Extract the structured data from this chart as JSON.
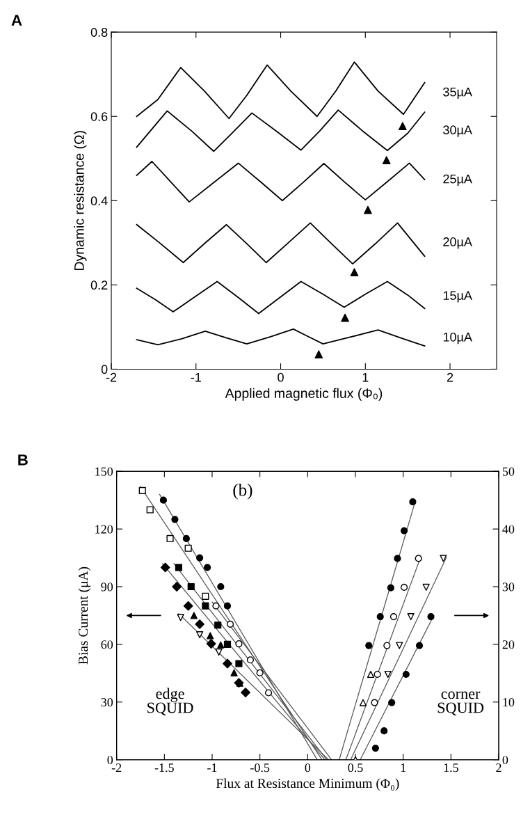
{
  "chart_data": [
    {
      "type": "line",
      "title": "A",
      "xlabel": "Applied magnetic flux (Φ₀)",
      "ylabel": "Dynamic resistance (Ω)",
      "xlim": [
        -2,
        2.55
      ],
      "ylim": [
        0,
        0.8
      ],
      "xticks": [
        -2,
        -1,
        0,
        1,
        2
      ],
      "yticks": [
        0,
        0.2,
        0.4,
        0.6,
        0.8
      ],
      "series": [
        {
          "name": "35µA",
          "color": "#000000",
          "x": [
            -1.7,
            -1.45,
            -1.18,
            -0.9,
            -0.61,
            -0.4,
            -0.16,
            0.12,
            0.43,
            0.65,
            0.87,
            1.15,
            1.45,
            1.7
          ],
          "values": [
            0.6,
            0.64,
            0.716,
            0.66,
            0.595,
            0.65,
            0.722,
            0.66,
            0.6,
            0.66,
            0.729,
            0.66,
            0.605,
            0.68
          ]
        },
        {
          "name": "30µA",
          "color": "#000000",
          "x": [
            -1.7,
            -1.34,
            -1.05,
            -0.79,
            -0.55,
            -0.34,
            -0.05,
            0.24,
            0.46,
            0.68,
            0.97,
            1.26,
            1.5,
            1.7
          ],
          "values": [
            0.527,
            0.613,
            0.565,
            0.517,
            0.565,
            0.608,
            0.565,
            0.52,
            0.565,
            0.615,
            0.565,
            0.519,
            0.56,
            0.61
          ]
        },
        {
          "name": "25µA",
          "color": "#000000",
          "x": [
            -1.7,
            -1.52,
            -1.3,
            -1.08,
            -0.79,
            -0.5,
            -0.24,
            0.02,
            0.27,
            0.51,
            0.75,
            1.0,
            1.26,
            1.52,
            1.7
          ],
          "values": [
            0.46,
            0.493,
            0.445,
            0.397,
            0.443,
            0.489,
            0.445,
            0.4,
            0.444,
            0.488,
            0.445,
            0.402,
            0.445,
            0.489,
            0.45
          ]
        },
        {
          "name": "20µA",
          "color": "#000000",
          "x": [
            -1.7,
            -1.43,
            -1.15,
            -0.9,
            -0.64,
            -0.4,
            -0.17,
            0.09,
            0.35,
            0.6,
            0.85,
            1.12,
            1.38,
            1.7
          ],
          "values": [
            0.343,
            0.3,
            0.253,
            0.298,
            0.343,
            0.298,
            0.253,
            0.3,
            0.347,
            0.298,
            0.25,
            0.298,
            0.347,
            0.268
          ]
        },
        {
          "name": "15µA",
          "color": "#000000",
          "x": [
            -1.7,
            -1.48,
            -1.27,
            -1.01,
            -0.75,
            -0.5,
            -0.26,
            -0.01,
            0.24,
            0.5,
            0.75,
            1.0,
            1.26,
            1.5,
            1.7
          ],
          "values": [
            0.192,
            0.165,
            0.136,
            0.172,
            0.208,
            0.17,
            0.132,
            0.17,
            0.208,
            0.178,
            0.147,
            0.178,
            0.208,
            0.176,
            0.144
          ]
        },
        {
          "name": "10µA",
          "color": "#000000",
          "x": [
            -1.7,
            -1.45,
            -1.17,
            -0.89,
            -0.65,
            -0.4,
            -0.12,
            0.15,
            0.32,
            0.5,
            0.82,
            1.15,
            1.45,
            1.7
          ],
          "values": [
            0.07,
            0.058,
            0.072,
            0.09,
            0.075,
            0.06,
            0.077,
            0.095,
            0.078,
            0.06,
            0.076,
            0.093,
            0.072,
            0.055
          ]
        },
        {
          "type": "scatter",
          "marker": "triangle",
          "color": "#000000",
          "x": [
            1.44,
            1.25,
            1.03,
            0.87,
            0.76,
            0.45
          ],
          "values": [
            0.577,
            0.496,
            0.378,
            0.23,
            0.122,
            0.035
          ]
        }
      ]
    },
    {
      "type": "scatter",
      "title": "B",
      "xlabel": "Flux at Resistance Minimum (Φ₀)",
      "ylabel": "Bias Current (μA)",
      "xlim": [
        -2,
        2
      ],
      "ylim": [
        0,
        150
      ],
      "y2lim": [
        0,
        50
      ],
      "xticks": [
        -2,
        -1.5,
        -1,
        -0.5,
        0,
        0.5,
        1,
        1.5,
        2
      ],
      "yticks": [
        0,
        30,
        60,
        90,
        120,
        150
      ],
      "y2ticks": [
        0,
        10,
        20,
        30,
        40,
        50
      ],
      "annotations": [
        "(b)",
        "edge\nSQUID",
        "corner\nSQUID"
      ],
      "series": [
        {
          "type": "line",
          "color": "#555555",
          "x": [
            -1.55,
            0.1
          ],
          "values": [
            138,
            0
          ]
        },
        {
          "type": "line",
          "color": "#555555",
          "x": [
            -1.75,
            0.15
          ],
          "values": [
            142,
            0
          ]
        },
        {
          "type": "line",
          "color": "#555555",
          "x": [
            -1.4,
            0.2
          ],
          "values": [
            102,
            0
          ]
        },
        {
          "type": "line",
          "color": "#555555",
          "x": [
            -1.52,
            0.18
          ],
          "values": [
            102,
            0
          ]
        },
        {
          "type": "line",
          "color": "#555555",
          "x": [
            -1.0,
            0.25
          ],
          "values": [
            82,
            0
          ]
        },
        {
          "type": "line",
          "color": "#555555",
          "x": [
            -1.35,
            0.22
          ],
          "values": [
            76,
            0
          ]
        },
        {
          "marker": "circle",
          "color": "#000000",
          "x": [
            -1.51,
            -1.39,
            -1.27,
            -1.13,
            -1.05,
            -0.91,
            -0.84
          ],
          "values": [
            135,
            125,
            115,
            105,
            100,
            90,
            80
          ]
        },
        {
          "marker": "square-open",
          "color": "#000000",
          "x": [
            -1.73,
            -1.65,
            -1.44,
            -1.25,
            -1.07
          ],
          "values": [
            140,
            130,
            115,
            110,
            85
          ]
        },
        {
          "marker": "circle-open",
          "color": "#000000",
          "x": [
            -0.96,
            -0.81,
            -0.72,
            -0.6,
            -0.5,
            -0.41
          ],
          "values": [
            80,
            70.5,
            60.3,
            51.9,
            45.2,
            34.8
          ]
        },
        {
          "marker": "square",
          "color": "#000000",
          "x": [
            -1.35,
            -1.22,
            -1.07,
            -0.94,
            -0.84,
            -0.72
          ],
          "values": [
            100,
            90,
            80,
            70,
            60,
            50
          ]
        },
        {
          "marker": "diamond",
          "color": "#000000",
          "x": [
            -1.49,
            -1.37,
            -1.25,
            -1.13,
            -1.01,
            -0.84,
            -0.72,
            -0.65
          ],
          "values": [
            100,
            90,
            80,
            70.5,
            60.3,
            50,
            40,
            35
          ]
        },
        {
          "marker": "triangle-down-open",
          "color": "#000000",
          "x": [
            -1.33,
            -1.13,
            -0.93
          ],
          "values": [
            74,
            65,
            56
          ]
        },
        {
          "marker": "triangle",
          "color": "#000000",
          "x": [
            -1.19,
            -1.02,
            -0.91,
            -0.77,
            -0.71
          ],
          "values": [
            75,
            64.5,
            59.7,
            45.2,
            39.8
          ]
        },
        {
          "type": "line",
          "axis": "y2",
          "color": "#555555",
          "x": [
            1.13,
            0.33
          ],
          "values": [
            45,
            0
          ]
        },
        {
          "type": "line",
          "axis": "y2",
          "color": "#555555",
          "x": [
            1.18,
            0.4
          ],
          "values": [
            35,
            0
          ]
        },
        {
          "type": "line",
          "axis": "y2",
          "color": "#555555",
          "x": [
            1.45,
            0.45
          ],
          "values": [
            35,
            0
          ]
        },
        {
          "type": "line",
          "axis": "y2",
          "color": "#555555",
          "x": [
            1.32,
            0.55
          ],
          "values": [
            25,
            0
          ]
        },
        {
          "axis": "y2",
          "marker": "circle",
          "color": "#000000",
          "x": [
            1.1,
            1.01,
            0.94,
            0.87,
            0.76,
            0.64
          ],
          "values": [
            44.7,
            39.7,
            34.9,
            29.8,
            24.8,
            19.8
          ]
        },
        {
          "axis": "y2",
          "marker": "circle-open",
          "color": "#000000",
          "x": [
            1.16,
            1.01,
            0.9,
            0.83,
            0.73,
            0.7
          ],
          "values": [
            34.9,
            29.9,
            24.8,
            19.8,
            14.8,
            9.9
          ]
        },
        {
          "axis": "y2",
          "marker": "triangle-down-open",
          "color": "#000000",
          "x": [
            1.42,
            1.24,
            1.08,
            0.96,
            0.84
          ],
          "values": [
            34.9,
            29.9,
            24.8,
            19.8,
            14.8
          ]
        },
        {
          "axis": "y2",
          "marker": "circle",
          "color": "#000000",
          "x": [
            1.29,
            1.17,
            1.03,
            0.88,
            0.8,
            0.71
          ],
          "values": [
            24.8,
            19.8,
            14.8,
            9.9,
            5,
            2
          ]
        },
        {
          "axis": "y2",
          "marker": "triangle-open",
          "color": "#000000",
          "x": [
            0.58,
            0.66,
            0.5
          ],
          "values": [
            9.9,
            14.8,
            0
          ]
        }
      ]
    }
  ]
}
